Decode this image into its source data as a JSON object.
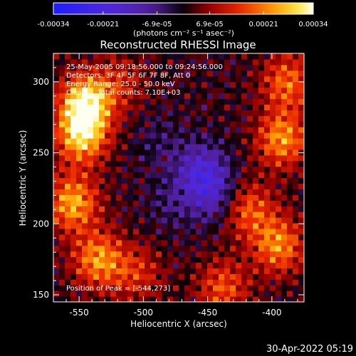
{
  "chart_data": {
    "type": "heatmap",
    "title": "Reconstructed RHESSI Image",
    "xlabel": "Heliocentric X (arcsec)",
    "ylabel": "Heliocentric Y (arcsec)",
    "xlim": [
      -570,
      -375
    ],
    "ylim": [
      145,
      320
    ],
    "x_ticks": [
      -550,
      -500,
      -450,
      -400
    ],
    "y_ticks": [
      150,
      200,
      250,
      300
    ],
    "colorbar": {
      "min": -0.00034,
      "max": 0.00034,
      "tick_values": [
        -0.00034,
        -0.00021,
        -6.9e-05,
        6.9e-05,
        0.00021,
        0.00034
      ],
      "tick_labels": [
        "-0.00034",
        "-0.00021",
        "-6.9e-05",
        "6.9e-05",
        "0.00021",
        "0.00034"
      ],
      "unit_label": "(photons cm⁻² s⁻¹ asec⁻²)"
    },
    "annotations": {
      "time_range": "25-May-2005 09:18:56.000 to 09:24:56.000",
      "detectors": "Detectors: 3F 4F 5F 6F 7F 8F, Att 0",
      "energy_range": "Energy Range: 25.0 - 50.0 keV",
      "method_counts": "Clean     Total counts: 7.10E+03",
      "peak_position": "Position of Peak = [-544,273]"
    },
    "peak": {
      "x": -544,
      "y": 273
    },
    "intensity_features": [
      {
        "x": -545,
        "y": 285,
        "value": 0.00032
      },
      {
        "x": -548,
        "y": 262,
        "value": 0.00026
      },
      {
        "x": -555,
        "y": 215,
        "value": 0.00024
      },
      {
        "x": -535,
        "y": 175,
        "value": 0.00022
      },
      {
        "x": -392,
        "y": 260,
        "value": 0.00022
      },
      {
        "x": -395,
        "y": 185,
        "value": 0.00021
      },
      {
        "x": -388,
        "y": 300,
        "value": 0.00018
      },
      {
        "x": -418,
        "y": 210,
        "value": 0.00017
      },
      {
        "x": -438,
        "y": 155,
        "value": 0.00016
      },
      {
        "x": -505,
        "y": 165,
        "value": 0.00012
      },
      {
        "x": -518,
        "y": 300,
        "value": 0.0001
      },
      {
        "x": -478,
        "y": 215,
        "value": -6e-05
      },
      {
        "x": -455,
        "y": 238,
        "value": -0.00016
      },
      {
        "x": -445,
        "y": 220,
        "value": -0.00012
      },
      {
        "x": -488,
        "y": 258,
        "value": -5e-05
      }
    ],
    "background_value": 1e-05
  },
  "footer": {
    "timestamp": "30-Apr-2022 05:19"
  },
  "colors": {
    "background": "#000000",
    "foreground": "#ffffff"
  }
}
